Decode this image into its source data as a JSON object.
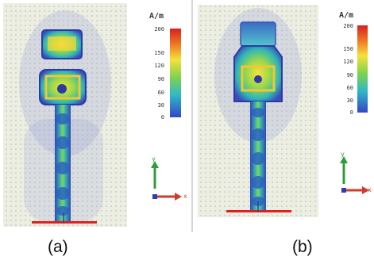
{
  "figure": {
    "panels": [
      {
        "id": "a",
        "label": "(a)",
        "colorbar": {
          "unit": "A/m",
          "ticks": [
            "200",
            "150",
            "120",
            "90",
            "60",
            "30",
            "0"
          ],
          "max": 200,
          "min": 0
        },
        "axis_labels": {
          "y": "y",
          "x": "x"
        }
      },
      {
        "id": "b",
        "label": "(b)",
        "colorbar": {
          "unit": "A/m",
          "ticks": [
            "200",
            "150",
            "120",
            "90",
            "60",
            "30",
            "0"
          ],
          "max": 200,
          "min": 0
        },
        "axis_labels": {
          "y": "y",
          "x": "x"
        }
      }
    ]
  },
  "colors": {
    "background": "#eceee0",
    "arrow_blue": "#2b3fb6",
    "ground_line": "#e02020",
    "axis_y": "#2f9d3a",
    "axis_x": "#d23b2b"
  }
}
